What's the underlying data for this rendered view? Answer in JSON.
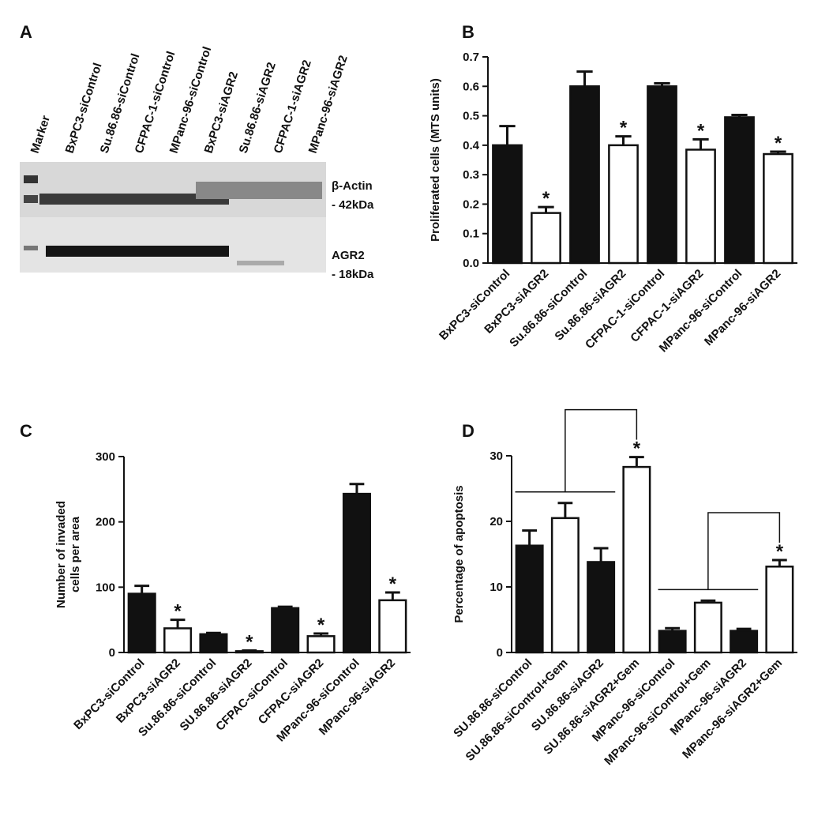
{
  "panel_a": {
    "label": "A",
    "lanes": [
      "Marker",
      "BxPC3-siControl",
      "Su.86.86-siControl",
      "CFPAC-1-siControl",
      "MPanc-96-siControl",
      "BxPC3-siAGR2",
      "Su.86.86-siAGR2",
      "CFPAC-1-siAGR2",
      "MPanc-96-siAGR2"
    ],
    "bands": [
      {
        "name": "β-Actin",
        "size": "- 42kDa"
      },
      {
        "name": "AGR2",
        "size": "- 18kDa"
      }
    ]
  },
  "chart_data": [
    {
      "type": "bar",
      "label": "B",
      "y_label": [
        "Proliferated cells (MTS units)"
      ],
      "categories": [
        "BxPC3-siControl",
        "BxPC3-siAGR2",
        "Su.86.86-siControl",
        "Su.86.86-siAGR2",
        "CFPAC-1-siControl",
        "CFPAC-1-siAGR2",
        "MPanc-96-siControl",
        "MPanc-96-siAGR2"
      ],
      "values": [
        0.4,
        0.17,
        0.6,
        0.4,
        0.6,
        0.385,
        0.495,
        0.37
      ],
      "errors": [
        0.065,
        0.02,
        0.05,
        0.03,
        0.01,
        0.035,
        0.008,
        0.008
      ],
      "colors": [
        "#111111",
        "#ffffff",
        "#111111",
        "#ffffff",
        "#111111",
        "#ffffff",
        "#111111",
        "#ffffff"
      ],
      "markers": [
        null,
        "*",
        null,
        "*",
        null,
        "*",
        null,
        "*"
      ],
      "ylim": [
        0,
        0.7
      ],
      "yticks": [
        {
          "value": 0,
          "label": "0.0"
        },
        0.1,
        0.2,
        0.3,
        0.4,
        0.5,
        0.6,
        0.7
      ]
    },
    {
      "type": "bar",
      "label": "C",
      "y_label": [
        "Number of invaded",
        "cells per area"
      ],
      "categories": [
        "BxPC3-siControl",
        "BxPC3-siAGR2",
        "Su.86.86-siControl",
        "SU.86.86-siAGR2",
        "CFPAC-siControl",
        "CFPAC-siAGR2",
        "MPanc-96-siControl",
        "MPanc-96-siAGR2"
      ],
      "values": [
        90,
        37,
        28,
        2,
        68,
        25,
        243,
        80
      ],
      "errors": [
        12,
        13,
        2,
        1,
        2,
        4,
        15,
        12
      ],
      "colors": [
        "#111111",
        "#ffffff",
        "#111111",
        "#ffffff",
        "#111111",
        "#ffffff",
        "#111111",
        "#ffffff"
      ],
      "markers": [
        null,
        "*",
        null,
        "*",
        null,
        "*",
        null,
        "*"
      ],
      "ylim": [
        0,
        300
      ],
      "yticks": [
        0,
        100,
        200,
        300
      ]
    },
    {
      "type": "bar",
      "label": "D",
      "y_label": [
        "Percentage of apoptosis"
      ],
      "categories": [
        "SU.86.86-siControl",
        "SU.86.86-siControl+Gem",
        "SU.86.86-siAGR2",
        "SU.86.86-siAGR2+Gem",
        "MPanc-96-siControl",
        "MPanc-96-siControl+Gem",
        "MPanc-96-siAGR2",
        "MPanc-96-siAGR2+Gem"
      ],
      "values": [
        16.3,
        20.5,
        13.8,
        28.3,
        3.3,
        7.6,
        3.3,
        13.1
      ],
      "errors": [
        2.3,
        2.3,
        2.1,
        1.5,
        0.4,
        0.3,
        0.3,
        1.0
      ],
      "colors": [
        "#111111",
        "#ffffff",
        "#111111",
        "#ffffff",
        "#111111",
        "#ffffff",
        "#111111",
        "#ffffff"
      ],
      "markers": [
        null,
        null,
        null,
        "*",
        null,
        null,
        null,
        "*"
      ],
      "ylim": [
        0,
        30
      ],
      "yticks": [
        0,
        10,
        20,
        30
      ]
    }
  ]
}
